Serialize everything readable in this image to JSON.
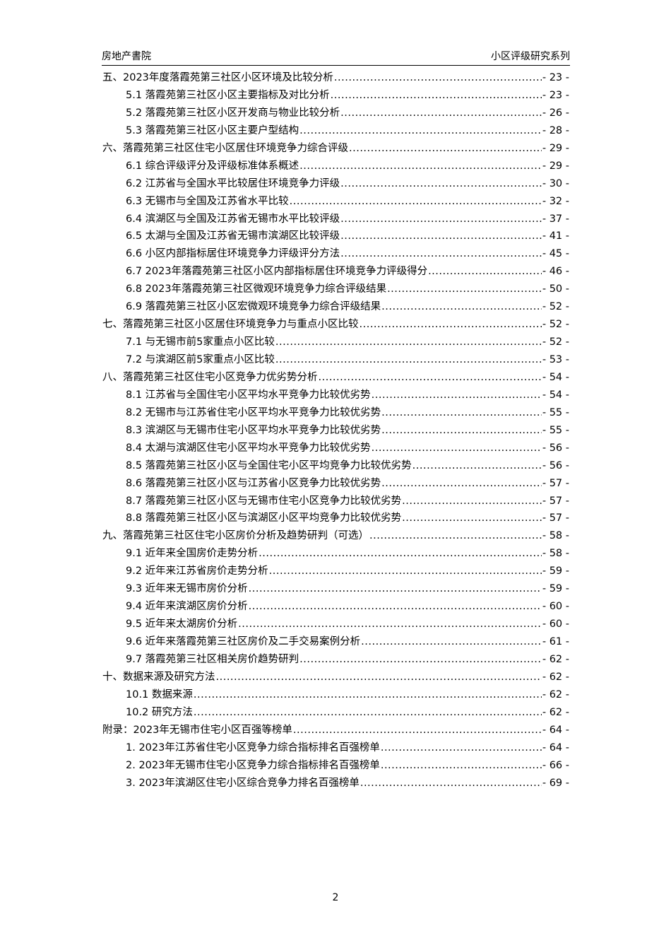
{
  "header": {
    "left": "房地产書院",
    "right": "小区评级研究系列"
  },
  "toc": [
    {
      "level": 1,
      "title": "五、2023年度落霞苑第三社区小区环境及比较分析",
      "page": "- 23 -"
    },
    {
      "level": 2,
      "title": "5.1 落霞苑第三社区小区主要指标及对比分析",
      "page": "- 23 -"
    },
    {
      "level": 2,
      "title": "5.2 落霞苑第三社区小区开发商与物业比较分析",
      "page": "- 26 -"
    },
    {
      "level": 2,
      "title": "5.3 落霞苑第三社区小区主要户型结构",
      "page": "- 28 -"
    },
    {
      "level": 1,
      "title": "六、落霞苑第三社区住宅小区居住环境竞争力综合评级",
      "page": "- 29 -"
    },
    {
      "level": 2,
      "title": "6.1 综合评级评分及评级标准体系概述",
      "page": "- 29 -"
    },
    {
      "level": 2,
      "title": "6.2 江苏省与全国水平比较居住环境竞争力评级",
      "page": "- 30 -"
    },
    {
      "level": 2,
      "title": "6.3 无锡市与全国及江苏省水平比较",
      "page": "- 32 -"
    },
    {
      "level": 2,
      "title": "6.4 滨湖区与全国及江苏省无锡市水平比较评级",
      "page": "- 37 -"
    },
    {
      "level": 2,
      "title": "6.5 太湖与全国及江苏省无锡市滨湖区比较评级",
      "page": "- 41 -"
    },
    {
      "level": 2,
      "title": "6.6 小区内部指标居住环境竞争力评级评分方法",
      "page": "- 45 -"
    },
    {
      "level": 2,
      "title": "6.7 2023年落霞苑第三社区小区内部指标居住环境竞争力评级得分",
      "page": "- 46 -"
    },
    {
      "level": 2,
      "title": "6.8 2023年落霞苑第三社区微观环境竞争力综合评级结果",
      "page": "- 50 -"
    },
    {
      "level": 2,
      "title": "6.9 落霞苑第三社区小区宏微观环境竞争力综合评级结果",
      "page": "- 52 -"
    },
    {
      "level": 1,
      "title": "七、落霞苑第三社区小区居住环境竞争力与重点小区比较",
      "page": "- 52 -"
    },
    {
      "level": 2,
      "title": "7.1 与无锡市前5家重点小区比较",
      "page": "- 52 -"
    },
    {
      "level": 2,
      "title": "7.2 与滨湖区前5家重点小区比较",
      "page": "- 53 -"
    },
    {
      "level": 1,
      "title": "八、落霞苑第三社区住宅小区竞争力优劣势分析",
      "page": "- 54 -"
    },
    {
      "level": 2,
      "title": "8.1 江苏省与全国住宅小区平均水平竞争力比较优劣势",
      "page": "- 54 -"
    },
    {
      "level": 2,
      "title": "8.2 无锡市与江苏省住宅小区平均水平竞争力比较优劣势",
      "page": "- 55 -"
    },
    {
      "level": 2,
      "title": "8.3 滨湖区与无锡市住宅小区平均水平竞争力比较优劣势",
      "page": "- 55 -"
    },
    {
      "level": 2,
      "title": "8.4 太湖与滨湖区住宅小区平均水平竞争力比较优劣势",
      "page": "- 56 -"
    },
    {
      "level": 2,
      "title": "8.5 落霞苑第三社区小区与全国住宅小区平均竞争力比较优劣势",
      "page": "- 56 -"
    },
    {
      "level": 2,
      "title": "8.6 落霞苑第三社区小区与江苏省小区竞争力比较优劣势",
      "page": "- 57 -"
    },
    {
      "level": 2,
      "title": "8.7 落霞苑第三社区小区与无锡市住宅小区竞争力比较优劣势",
      "page": "- 57 -"
    },
    {
      "level": 2,
      "title": "8.8 落霞苑第三社区小区与滨湖区小区平均竞争力比较优劣势",
      "page": "- 57 -"
    },
    {
      "level": 1,
      "title": "九、落霞苑第三社区住宅小区房价分析及趋势研判（可选）",
      "page": "- 58 -"
    },
    {
      "level": 2,
      "title": "9.1 近年来全国房价走势分析",
      "page": "- 58 -"
    },
    {
      "level": 2,
      "title": "9.2 近年来江苏省房价走势分析",
      "page": "- 59 -"
    },
    {
      "level": 2,
      "title": "9.3 近年来无锡市房价分析",
      "page": "- 59 -"
    },
    {
      "level": 2,
      "title": "9.4 近年来滨湖区房价分析",
      "page": "- 60 -"
    },
    {
      "level": 2,
      "title": "9.5 近年来太湖房价分析",
      "page": "- 60 -"
    },
    {
      "level": 2,
      "title": "9.6 近年来落霞苑第三社区房价及二手交易案例分析",
      "page": "- 61 -"
    },
    {
      "level": 2,
      "title": "9.7 落霞苑第三社区相关房价趋势研判",
      "page": "- 62 -"
    },
    {
      "level": 1,
      "title": "十、数据来源及研究方法",
      "page": "- 62 -"
    },
    {
      "level": 2,
      "title": "10.1 数据来源",
      "page": "- 62 -"
    },
    {
      "level": 2,
      "title": "10.2 研究方法",
      "page": "- 62 -"
    },
    {
      "level": 1,
      "title": "附录：2023年无锡市住宅小区百强等榜单",
      "page": "- 64 -"
    },
    {
      "level": 2,
      "title": "1.  2023年江苏省住宅小区竞争力综合指标排名百强榜单",
      "page": "- 64 -"
    },
    {
      "level": 2,
      "title": "2.  2023年无锡市住宅小区竞争力综合指标排名百强榜单",
      "page": "- 66 -"
    },
    {
      "level": 2,
      "title": "3.  2023年滨湖区住宅小区综合竞争力排名百强榜单",
      "page": "- 69 -"
    }
  ],
  "footer": {
    "page_number": "2"
  }
}
